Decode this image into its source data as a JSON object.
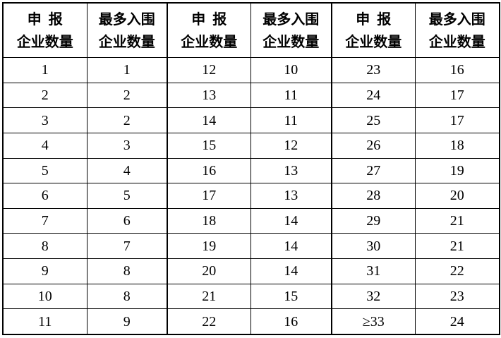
{
  "colors": {
    "border": "#000000",
    "text": "#000000",
    "background": "#ffffff"
  },
  "table": {
    "description": "Quota table mapping number of declaring enterprises to maximum number of shortlisted enterprises, repeated in three column groups",
    "header": {
      "declared_line1": "申 报",
      "declared_line2": "企业数量",
      "shortlisted_line1": "最多入围",
      "shortlisted_line2": "企业数量"
    },
    "column_headers": [
      "申 报 企业数量",
      "最多入围 企业数量",
      "申 报 企业数量",
      "最多入围 企业数量",
      "申 报 企业数量",
      "最多入围 企业数量"
    ],
    "rows": [
      [
        "1",
        "1",
        "12",
        "10",
        "23",
        "16"
      ],
      [
        "2",
        "2",
        "13",
        "11",
        "24",
        "17"
      ],
      [
        "3",
        "2",
        "14",
        "11",
        "25",
        "17"
      ],
      [
        "4",
        "3",
        "15",
        "12",
        "26",
        "18"
      ],
      [
        "5",
        "4",
        "16",
        "13",
        "27",
        "19"
      ],
      [
        "6",
        "5",
        "17",
        "13",
        "28",
        "20"
      ],
      [
        "7",
        "6",
        "18",
        "14",
        "29",
        "21"
      ],
      [
        "8",
        "7",
        "19",
        "14",
        "30",
        "21"
      ],
      [
        "9",
        "8",
        "20",
        "14",
        "31",
        "22"
      ],
      [
        "10",
        "8",
        "21",
        "15",
        "32",
        "23"
      ],
      [
        "11",
        "9",
        "22",
        "16",
        "≥33",
        "24"
      ]
    ]
  }
}
